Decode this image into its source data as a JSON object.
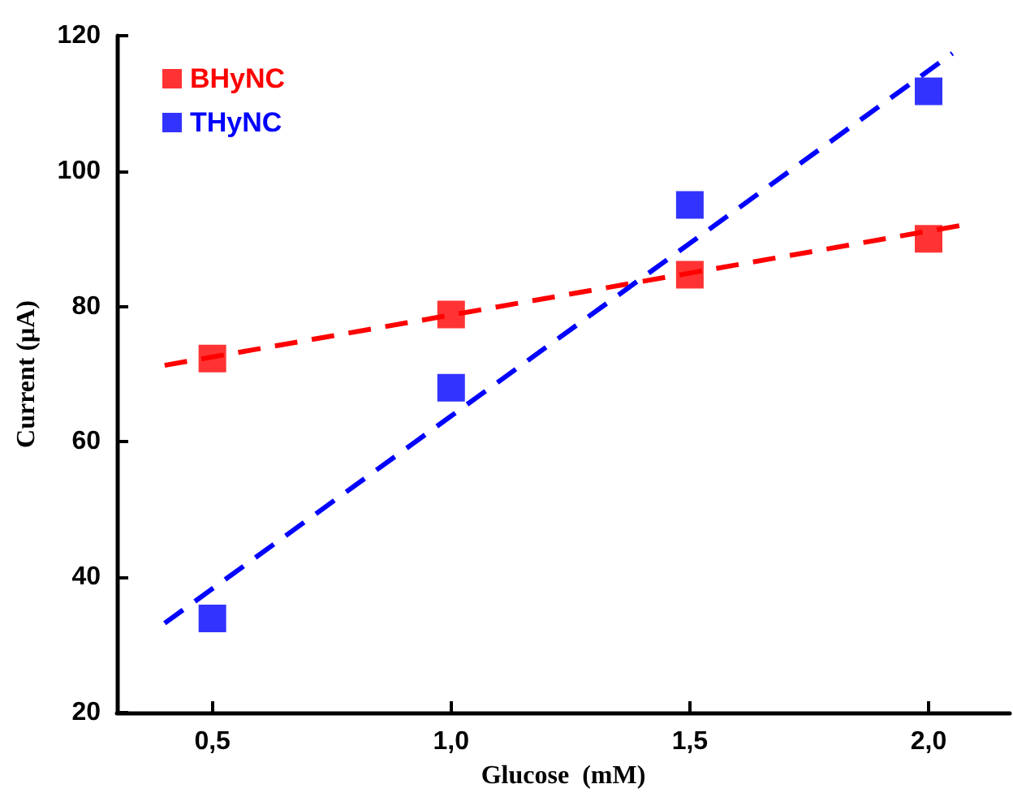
{
  "chart_data": {
    "type": "scatter",
    "xlabel": "Glucose  (mM)",
    "ylabel": "Current (μA)",
    "xlim": [
      0.3,
      2.17
    ],
    "ylim": [
      20,
      120
    ],
    "xticks": [
      {
        "value": 0.5,
        "label": "0,5"
      },
      {
        "value": 1.0,
        "label": "1,0"
      },
      {
        "value": 1.5,
        "label": "1,5"
      },
      {
        "value": 2.0,
        "label": "2,0"
      }
    ],
    "yticks": [
      20,
      40,
      60,
      80,
      100,
      120
    ],
    "legend": "top left",
    "grid": false,
    "marker": "square",
    "series": [
      {
        "name": "BHyNC",
        "color": "#ff0000",
        "x": [
          0.5,
          1.0,
          1.5,
          2.0
        ],
        "values": [
          72.3,
          78.8,
          84.7,
          90
        ]
      },
      {
        "name": "THyNC",
        "color": "#0000ff",
        "x": [
          0.5,
          1.0,
          1.5,
          2.0
        ],
        "values": [
          33.9,
          68,
          95,
          111.8
        ]
      },
      {
        "type": "line",
        "color": "#ff0000",
        "marker": "none",
        "line_style": "dashed",
        "x": [
          0.4,
          2.07
        ],
        "values": [
          71.3,
          92
        ]
      },
      {
        "type": "line",
        "color": "#0000ff",
        "marker": "none",
        "line_style": "dashed",
        "x": [
          0.4,
          2.05
        ],
        "values": [
          33.2,
          117.4
        ]
      }
    ]
  }
}
